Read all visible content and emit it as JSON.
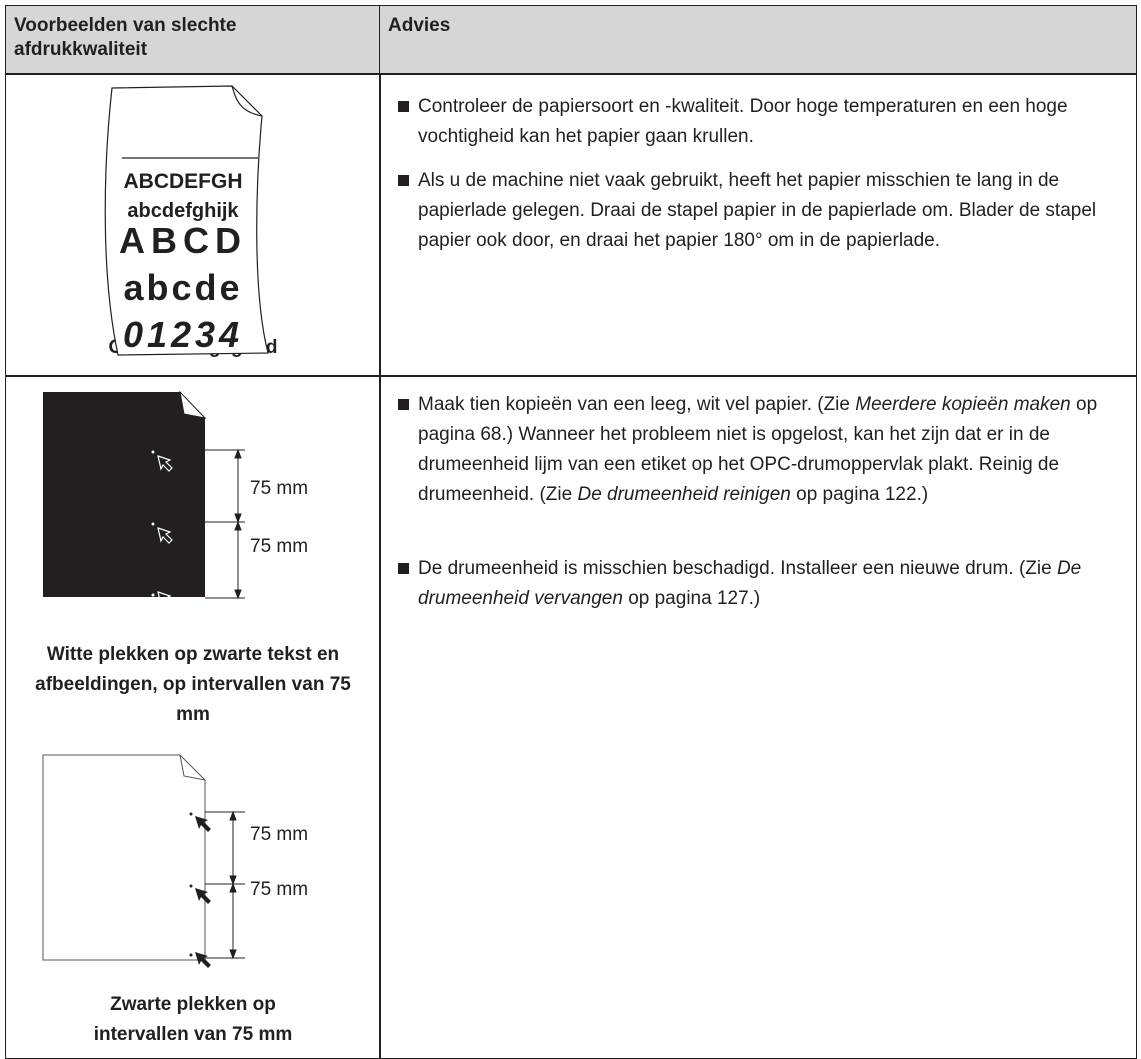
{
  "table": {
    "header": [
      "Voorbeelden van slechte afdrukkwaliteit",
      "Advies"
    ],
    "rows": [
      {
        "illustrations": [
          {
            "texts": [
              "ABCDEFGH",
              "abcdefghijk",
              "ABCD",
              "abcde",
              "01234"
            ],
            "caption": "Gekruld of gegolfd"
          }
        ],
        "advice": [
          [
            "Controleer de papiersoort en -kwaliteit. Door hoge temperaturen en een hoge vochtigheid kan het papier gaan krullen."
          ],
          [
            "Als u de machine niet vaak gebruikt, heeft het papier misschien te lang in de papierlade gelegen. Draai de stapel papier in de papierlade om. Blader de stapel papier ook door, en draai het papier 180° om in de papierlade."
          ]
        ]
      },
      {
        "illustrations": [
          {
            "texts": [
              "75 mm",
              "75 mm"
            ],
            "caption": "Witte plekken op zwarte tekst en afbeeldingen, op intervallen van 75 mm"
          },
          {
            "texts": [
              "75 mm",
              "75 mm"
            ],
            "caption": "Zwarte plekken op intervallen van 75 mm"
          }
        ],
        "advice": [
          [
            "Maak tien kopieën van een leeg, wit vel papier. (Zie ",
            "Meerdere kopieën maken",
            " op pagina 68.) Wanneer het probleem niet is opgelost, kan het zijn dat er in de drumeenheid lijm van een etiket op het OPC-drumoppervlak plakt. Reinig de drumeenheid. (Zie ",
            "De drumeenheid reinigen",
            " op pagina 122.)"
          ],
          [
            "De drumeenheid is misschien beschadigd. Installeer een nieuwe drum. (Zie ",
            "De drumeenheid vervangen",
            " op pagina 127.)"
          ]
        ]
      }
    ]
  }
}
